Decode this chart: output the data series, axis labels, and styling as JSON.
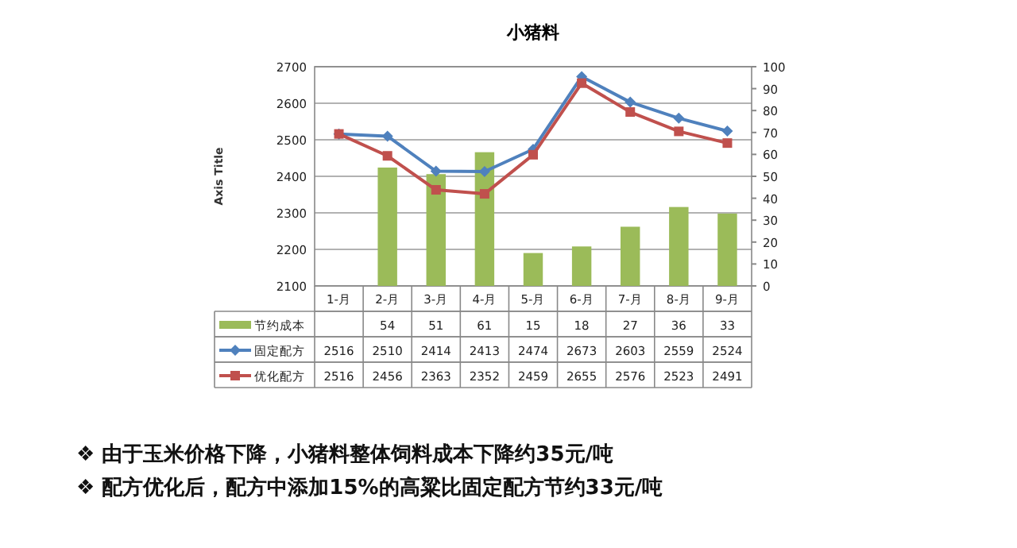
{
  "chart_data": {
    "type": "bar",
    "title": "小猪料",
    "ylabel": "Axis Title",
    "categories": [
      "1-月",
      "2-月",
      "3-月",
      "4-月",
      "5-月",
      "6-月",
      "7-月",
      "8-月",
      "9-月"
    ],
    "series": [
      {
        "name": "节约成本",
        "axis": "y2",
        "color": "#9bbb59",
        "values": [
          null,
          54,
          51,
          61,
          15,
          18,
          27,
          36,
          33
        ]
      },
      {
        "name": "固定配方",
        "type": "line",
        "marker": "diamond",
        "color": "#4f81bd",
        "values": [
          2516,
          2510,
          2414,
          2413,
          2474,
          2673,
          2603,
          2559,
          2524
        ]
      },
      {
        "name": "优化配方",
        "type": "line",
        "marker": "square",
        "color": "#c0504d",
        "values": [
          2516,
          2456,
          2363,
          2352,
          2459,
          2655,
          2576,
          2523,
          2491
        ]
      }
    ],
    "ylim": [
      2100,
      2700
    ],
    "yticks": [
      2100,
      2200,
      2300,
      2400,
      2500,
      2600,
      2700
    ],
    "y2lim": [
      0,
      100
    ],
    "y2ticks": [
      0,
      10,
      20,
      30,
      40,
      50,
      60,
      70,
      80,
      90,
      100
    ],
    "grid": "y",
    "data_labels": true,
    "legend": "bottom",
    "annotations": [
      "❖ 由于玉米价格下降，小猪料整体饲料成本下降约35元/吨",
      "❖ 配方优化后，配方中添加15%的高粱比固定配方节约33元/吨"
    ]
  }
}
